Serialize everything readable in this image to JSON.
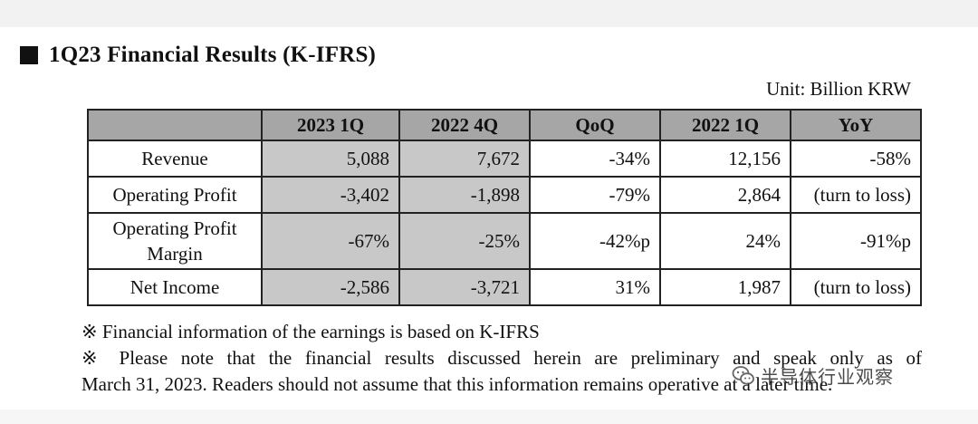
{
  "document": {
    "title": "1Q23 Financial Results (K-IFRS)",
    "unit": "Unit: Billion KRW"
  },
  "table": {
    "headers": [
      "",
      "2023 1Q",
      "2022 4Q",
      "QoQ",
      "2022 1Q",
      "YoY"
    ],
    "rows": [
      {
        "label": "Revenue",
        "cells": [
          "5,088",
          "7,672",
          "-34%",
          "12,156",
          "-58%"
        ]
      },
      {
        "label": "Operating Profit",
        "cells": [
          "-3,402",
          "-1,898",
          "-79%",
          "2,864",
          "(turn to loss)"
        ]
      },
      {
        "label_line1": "Operating Profit",
        "label_line2": "Margin",
        "cells": [
          "-67%",
          "-25%",
          "-42%p",
          "24%",
          "-91%p"
        ]
      },
      {
        "label": "Net Income",
        "cells": [
          "-2,586",
          "-3,721",
          "31%",
          "1,987",
          "(turn to loss)"
        ]
      }
    ]
  },
  "notes": [
    "※ Financial information of the earnings is based on K-IFRS",
    "※ Please note that the financial results discussed herein are preliminary and speak only as of",
    "March 31, 2023. Readers should not assume that this information remains operative at a later time."
  ],
  "watermark": {
    "text": "半导体行业观察",
    "icon": "wechat-logo-icon"
  },
  "colors": {
    "header_bg": "#a6a6a6",
    "shaded_cell": "#c8c8c8"
  }
}
